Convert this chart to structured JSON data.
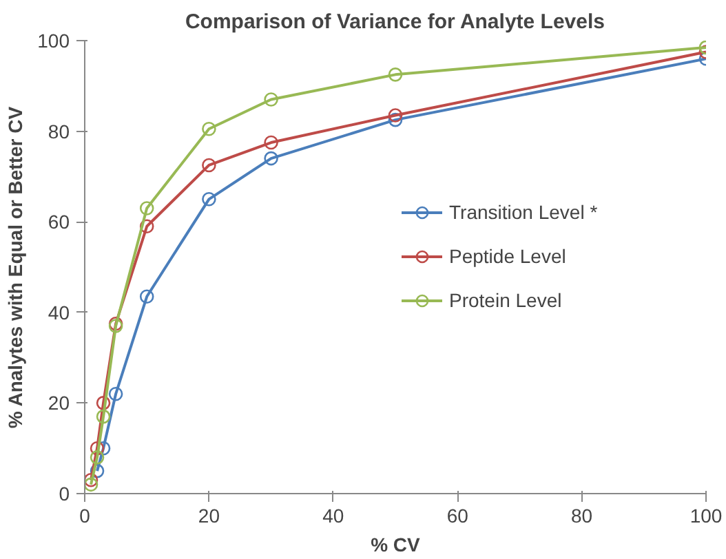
{
  "chart_data": {
    "type": "line",
    "title": "Comparison of Variance for Analyte Levels",
    "xlabel": "% CV",
    "ylabel": "% Analytes with Equal or Better CV",
    "x": [
      1,
      2,
      3,
      5,
      10,
      20,
      30,
      50,
      100
    ],
    "series": [
      {
        "name": "Transition Level *",
        "color": "#4a7ebb",
        "values": [
          null,
          5,
          10,
          22,
          43.5,
          65,
          74,
          82.5,
          96
        ]
      },
      {
        "name": "Peptide Level",
        "color": "#be4b48",
        "values": [
          3,
          10,
          20,
          37.5,
          59,
          72.5,
          77.5,
          83.5,
          97.5
        ]
      },
      {
        "name": "Protein Level",
        "color": "#98b954",
        "values": [
          2,
          8,
          17,
          37,
          63,
          80.5,
          87,
          92.5,
          98.5
        ]
      }
    ],
    "xlim": [
      0,
      100
    ],
    "ylim": [
      0,
      100
    ],
    "xticks": [
      0,
      20,
      40,
      60,
      80,
      100
    ],
    "yticks": [
      0,
      20,
      40,
      60,
      80,
      100
    ],
    "grid": false,
    "legend": "right",
    "marker": "circle",
    "line_style": "solid"
  }
}
